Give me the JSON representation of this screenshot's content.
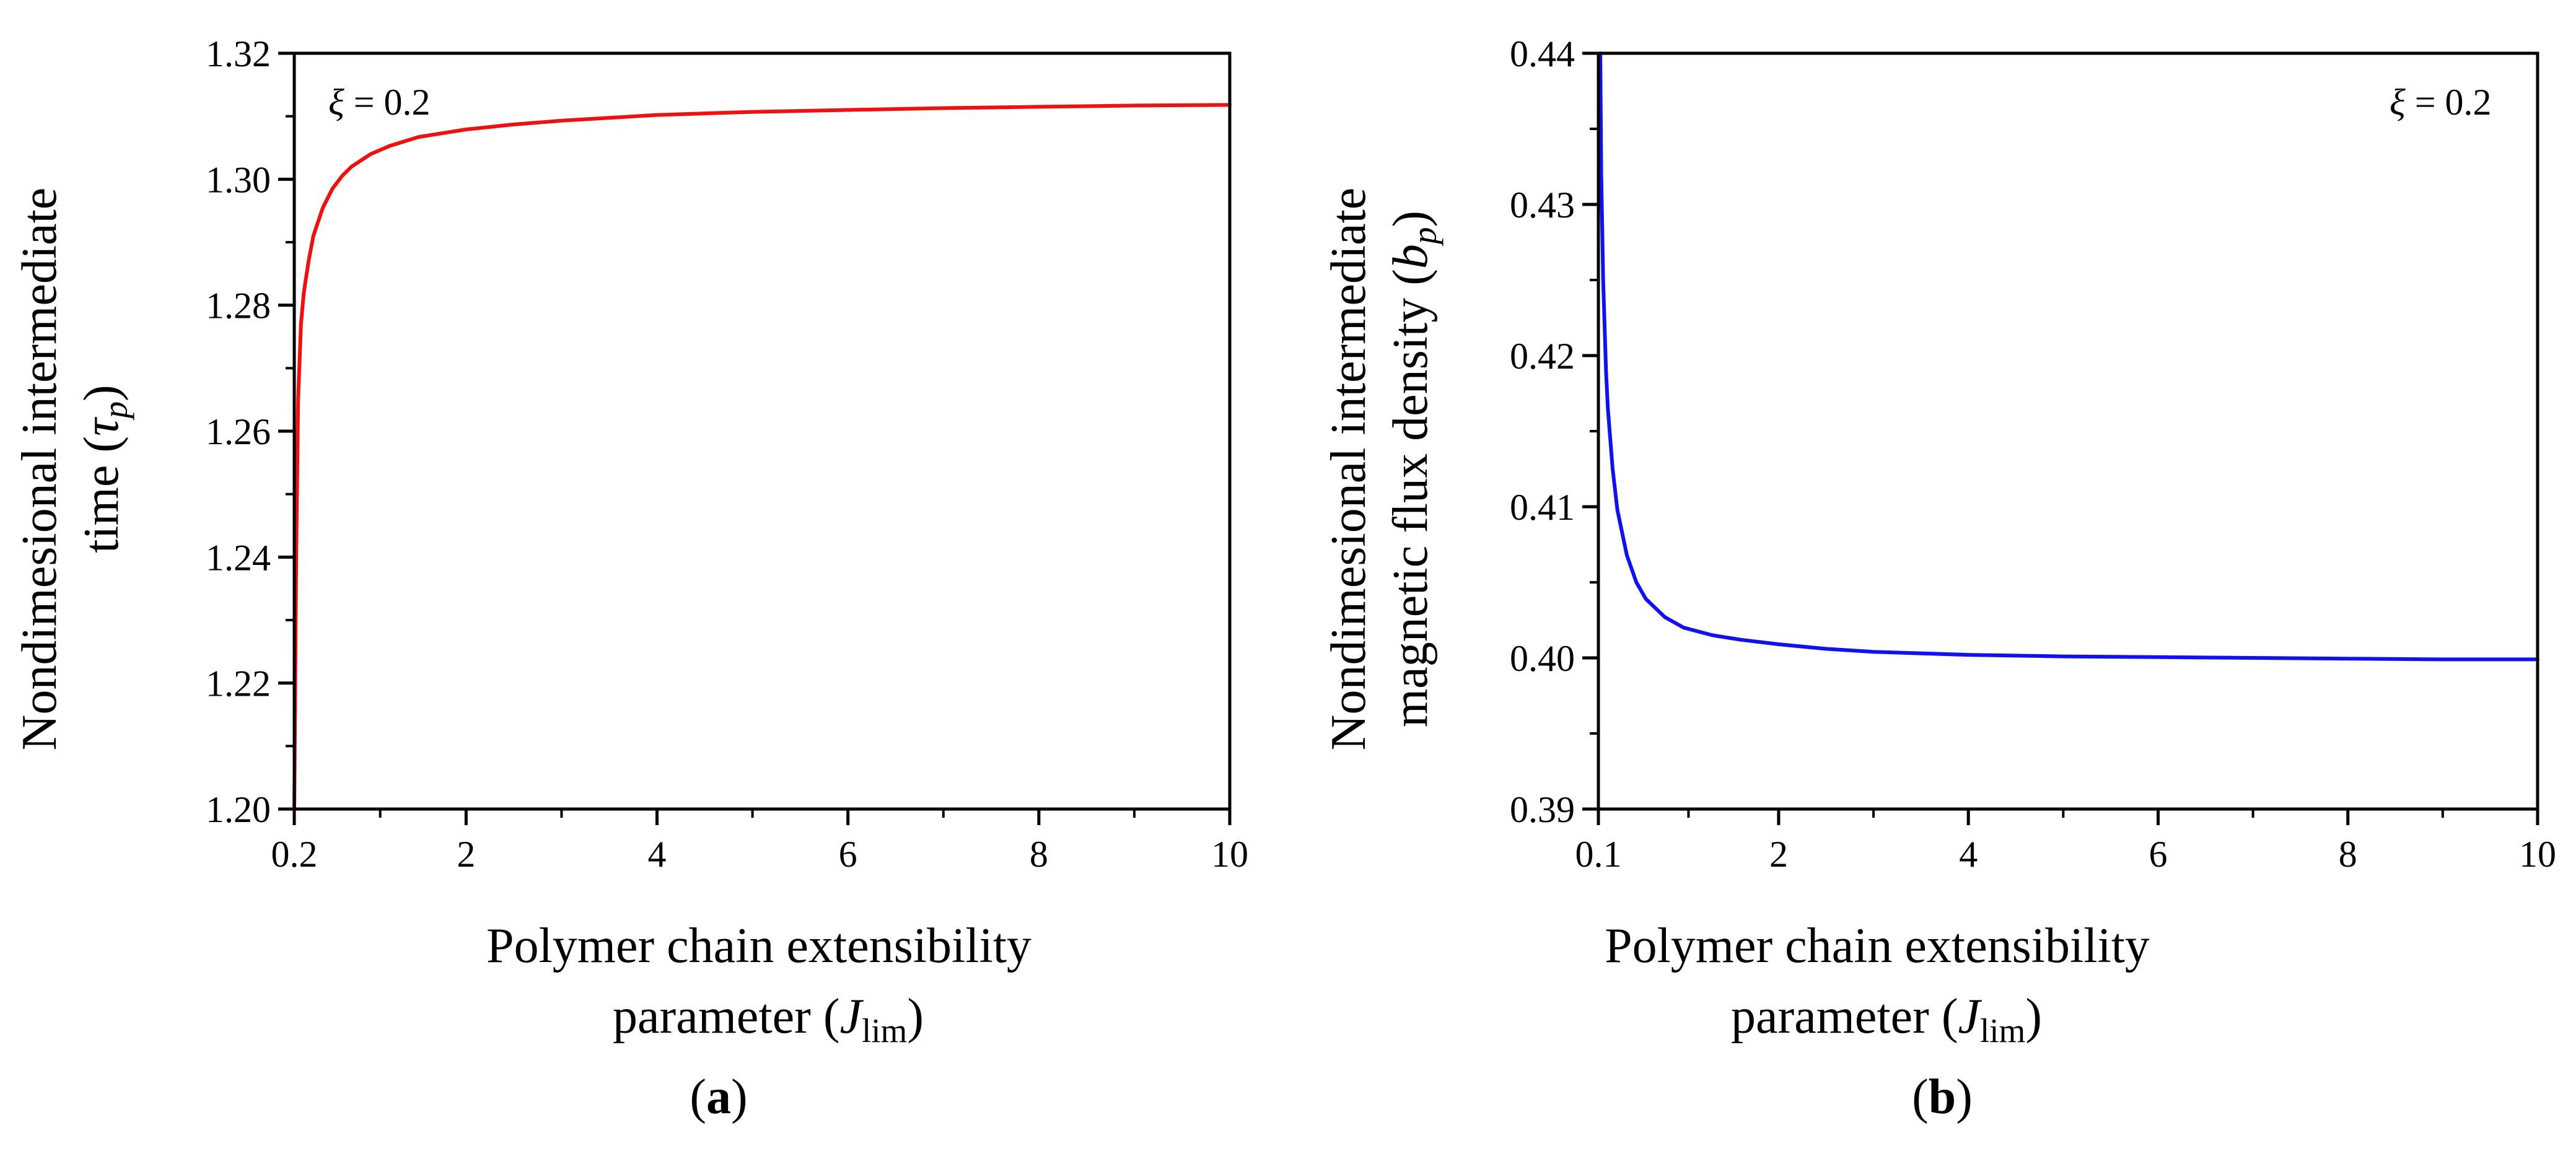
{
  "figure": {
    "panels": [
      "a",
      "b"
    ]
  },
  "chart_data": [
    {
      "type": "line",
      "panel_label": "a",
      "ylabel_line1": "Nondimesional intermediate",
      "ylabel_line2": "time (",
      "ylabel_symbol": "τ",
      "ylabel_sub": "p",
      "ylabel_close": ")",
      "xlabel_line1": "Polymer chain extensibility",
      "xlabel_line2": "parameter (",
      "xlabel_symbol": "J",
      "xlabel_sub": "lim",
      "xlabel_close": ")",
      "annotation_symbol": "ξ",
      "annotation_value": " = 0.2",
      "xlim": [
        0.2,
        10
      ],
      "ylim": [
        1.2,
        1.32
      ],
      "xticks": [
        0.2,
        2,
        4,
        6,
        8,
        10
      ],
      "xtick_labels": [
        "0.2",
        "2",
        "4",
        "6",
        "8",
        "10"
      ],
      "yticks": [
        1.2,
        1.22,
        1.24,
        1.26,
        1.28,
        1.3,
        1.32
      ],
      "ytick_labels": [
        "1.20",
        "1.22",
        "1.24",
        "1.26",
        "1.28",
        "1.30",
        "1.32"
      ],
      "color": "#ee1111",
      "series": [
        {
          "name": "tau_p",
          "x": [
            0.2,
            0.22,
            0.24,
            0.27,
            0.3,
            0.35,
            0.4,
            0.5,
            0.6,
            0.7,
            0.8,
            1.0,
            1.2,
            1.5,
            2.0,
            2.5,
            3.0,
            4.0,
            5.0,
            6.0,
            7.0,
            8.0,
            9.0,
            10.0
          ],
          "y": [
            1.2,
            1.24,
            1.265,
            1.277,
            1.282,
            1.287,
            1.291,
            1.2955,
            1.2985,
            1.3005,
            1.302,
            1.304,
            1.3053,
            1.3067,
            1.3079,
            1.3087,
            1.3093,
            1.3102,
            1.3107,
            1.311,
            1.3113,
            1.3115,
            1.3117,
            1.3118
          ]
        }
      ]
    },
    {
      "type": "line",
      "panel_label": "b",
      "ylabel_line1": "Nondimesional intermediate",
      "ylabel_line2": "magnetic flux density (",
      "ylabel_symbol": "b",
      "ylabel_sub": "p",
      "ylabel_close": ")",
      "xlabel_line1": "Polymer chain extensibility",
      "xlabel_line2": "parameter (",
      "xlabel_symbol": "J",
      "xlabel_sub": "lim",
      "xlabel_close": ")",
      "annotation_symbol": "ξ",
      "annotation_value": " = 0.2",
      "xlim": [
        0.1,
        10
      ],
      "ylim": [
        0.39,
        0.44
      ],
      "xticks": [
        0.1,
        2,
        4,
        6,
        8,
        10
      ],
      "xtick_labels": [
        "0.1",
        "2",
        "4",
        "6",
        "8",
        "10"
      ],
      "yticks": [
        0.39,
        0.4,
        0.41,
        0.42,
        0.43,
        0.44
      ],
      "ytick_labels": [
        "0.39",
        "0.40",
        "0.41",
        "0.42",
        "0.43",
        "0.44"
      ],
      "color": "#1111ee",
      "series": [
        {
          "name": "b_p",
          "x": [
            0.12,
            0.13,
            0.15,
            0.18,
            0.2,
            0.25,
            0.3,
            0.4,
            0.5,
            0.6,
            0.8,
            1.0,
            1.3,
            1.6,
            2.0,
            2.5,
            3.0,
            4.0,
            5.0,
            6.0,
            7.0,
            8.0,
            9.0,
            10.0
          ],
          "y": [
            0.44,
            0.432,
            0.425,
            0.419,
            0.4165,
            0.4125,
            0.4098,
            0.4068,
            0.405,
            0.4039,
            0.4027,
            0.402,
            0.4015,
            0.4012,
            0.4009,
            0.4006,
            0.4004,
            0.4002,
            0.4001,
            0.40005,
            0.4,
            0.39995,
            0.3999,
            0.3999
          ]
        }
      ]
    }
  ]
}
